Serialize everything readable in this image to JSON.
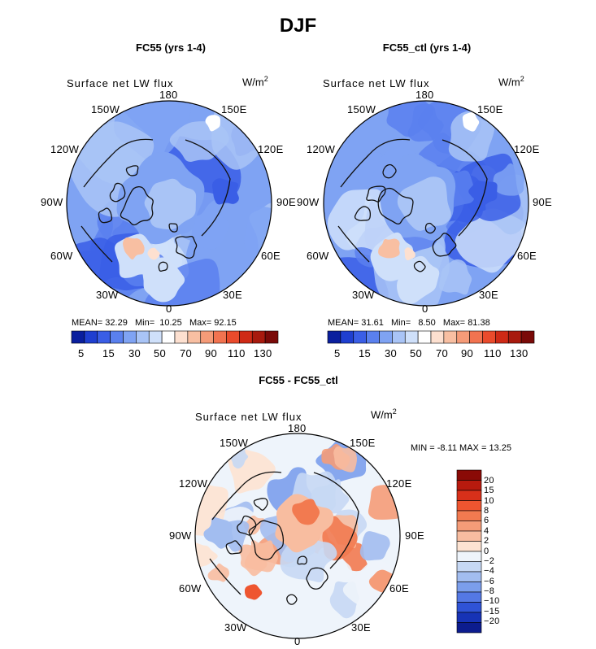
{
  "season": "DJF",
  "chart_data": [
    {
      "type": "heatmap",
      "title": "FC55 (yrs 1-4)",
      "variable": "Surface net LW flux",
      "units": "W/m",
      "units_exp": "2",
      "projection": "north polar stereographic",
      "lon_labels": {
        "n": "180",
        "ne": "150E",
        "e1": "120E",
        "e": "90E",
        "e2": "60E",
        "se": "30E",
        "s": "0",
        "sw": "30W",
        "w2": "60W",
        "w": "90W",
        "w1": "120W",
        "nw": "150W"
      },
      "stats": {
        "mean_label": "MEAN=",
        "mean": "32.29",
        "min_label": "Min=",
        "min": "10.25",
        "max_label": "Max=",
        "max": "92.15"
      },
      "colorbar": {
        "levels": [
          "5",
          "15",
          "30",
          "50",
          "70",
          "90",
          "110",
          "130"
        ],
        "colors": [
          "#0a1f9e",
          "#1f3fd0",
          "#3a5ee6",
          "#5a80ee",
          "#7fa3f3",
          "#a9c4f6",
          "#cfe0fa",
          "#ffffff",
          "#fde0d0",
          "#f8bfa2",
          "#f59b78",
          "#f27350",
          "#ea4b2c",
          "#cf2a16",
          "#a81a0e",
          "#7a0a08"
        ]
      }
    },
    {
      "type": "heatmap",
      "title": "FC55_ctl (yrs 1-4)",
      "variable": "Surface net LW flux",
      "units": "W/m",
      "units_exp": "2",
      "projection": "north polar stereographic",
      "lon_labels": {
        "n": "180",
        "ne": "150E",
        "e1": "120E",
        "e": "90E",
        "e2": "60E",
        "se": "30E",
        "s": "0",
        "sw": "30W",
        "w2": "60W",
        "w": "90W",
        "w1": "120W",
        "nw": "150W"
      },
      "stats": {
        "mean_label": "MEAN=",
        "mean": "31.61",
        "min_label": "Min=",
        "min": "8.50",
        "max_label": "Max=",
        "max": "81.38"
      },
      "colorbar": {
        "levels": [
          "5",
          "15",
          "30",
          "50",
          "70",
          "90",
          "110",
          "130"
        ],
        "colors": [
          "#0a1f9e",
          "#1f3fd0",
          "#3a5ee6",
          "#5a80ee",
          "#7fa3f3",
          "#a9c4f6",
          "#cfe0fa",
          "#ffffff",
          "#fde0d0",
          "#f8bfa2",
          "#f59b78",
          "#f27350",
          "#ea4b2c",
          "#cf2a16",
          "#a81a0e",
          "#7a0a08"
        ]
      }
    },
    {
      "type": "heatmap",
      "title": "FC55 - FC55_ctl",
      "variable": "Surface net LW flux",
      "units": "W/m",
      "units_exp": "2",
      "projection": "north polar stereographic",
      "lon_labels": {
        "n": "180",
        "ne": "150E",
        "e1": "120E",
        "e": "90E",
        "e2": "60E",
        "se": "30E",
        "s": "0",
        "sw": "30W",
        "w2": "60W",
        "w": "90W",
        "w1": "120W",
        "nw": "150W"
      },
      "stats": {
        "min_label": "MIN =",
        "min": "-8.11",
        "max_label": "MAX =",
        "max": "13.25"
      },
      "colorbar": {
        "levels": [
          "20",
          "15",
          "10",
          "8",
          "6",
          "4",
          "2",
          "0",
          "−2",
          "−4",
          "−6",
          "−8",
          "−10",
          "−15",
          "−20"
        ],
        "colors": [
          "#8a0a06",
          "#b81a0e",
          "#d8301a",
          "#ee5530",
          "#f27a50",
          "#f59c78",
          "#f8bda0",
          "#fde3d2",
          "#eef4fb",
          "#c6d8f4",
          "#a2bdf0",
          "#7b9eec",
          "#5478e4",
          "#2f53d6",
          "#1733b6",
          "#0c1c8e"
        ]
      }
    }
  ]
}
